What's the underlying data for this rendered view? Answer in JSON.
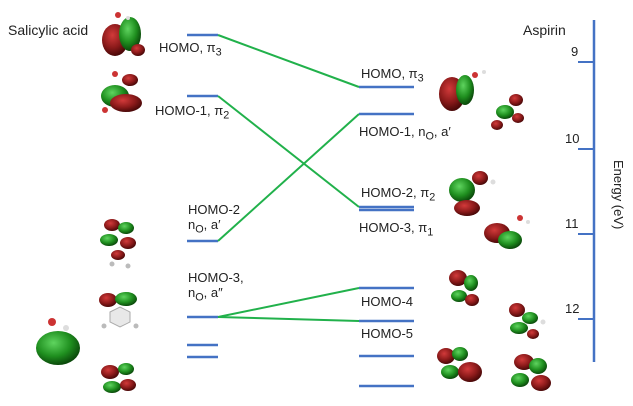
{
  "titles": {
    "left": "Salicylic acid",
    "right": "Aspirin"
  },
  "salicylic_acid_levels": [
    {
      "name": "HOMO, π3",
      "base": "HOMO, π",
      "sub": "3"
    },
    {
      "name": "HOMO-1, π2",
      "base": "HOMO-1, π",
      "sub": "2"
    },
    {
      "name": "HOMO-2 nO, a′",
      "line1": "HOMO-2",
      "line2_base": "n",
      "line2_sub": "O",
      "line2_rest": ", a′"
    },
    {
      "name": "HOMO-3, nO, a″",
      "line1": "HOMO-3,",
      "line2_base": "n",
      "line2_sub": "O",
      "line2_rest": ", a″"
    }
  ],
  "aspirin_levels": [
    {
      "name": "HOMO, π3",
      "base": "HOMO, π",
      "sub": "3"
    },
    {
      "name": "HOMO-1, nO, a′",
      "base": "HOMO-1, n",
      "sub": "O",
      "rest": ", a′"
    },
    {
      "name": "HOMO-2, π2",
      "base": "HOMO-2, π",
      "sub": "2"
    },
    {
      "name": "HOMO-3, π1",
      "base": "HOMO-3, π",
      "sub": "1"
    },
    {
      "name": "HOMO-4",
      "base": "HOMO-4"
    },
    {
      "name": "HOMO-5",
      "base": "HOMO-5"
    }
  ],
  "energy_axis": {
    "title": "Energy (eV)",
    "ticks": [
      "9",
      "10",
      "11",
      "12"
    ]
  },
  "colors": {
    "level": "#4472c4",
    "connector": "#21b14b",
    "axis": "#4472c4",
    "orbital_pos": "#8b1a1a",
    "orbital_neg": "#2a9a2a"
  }
}
